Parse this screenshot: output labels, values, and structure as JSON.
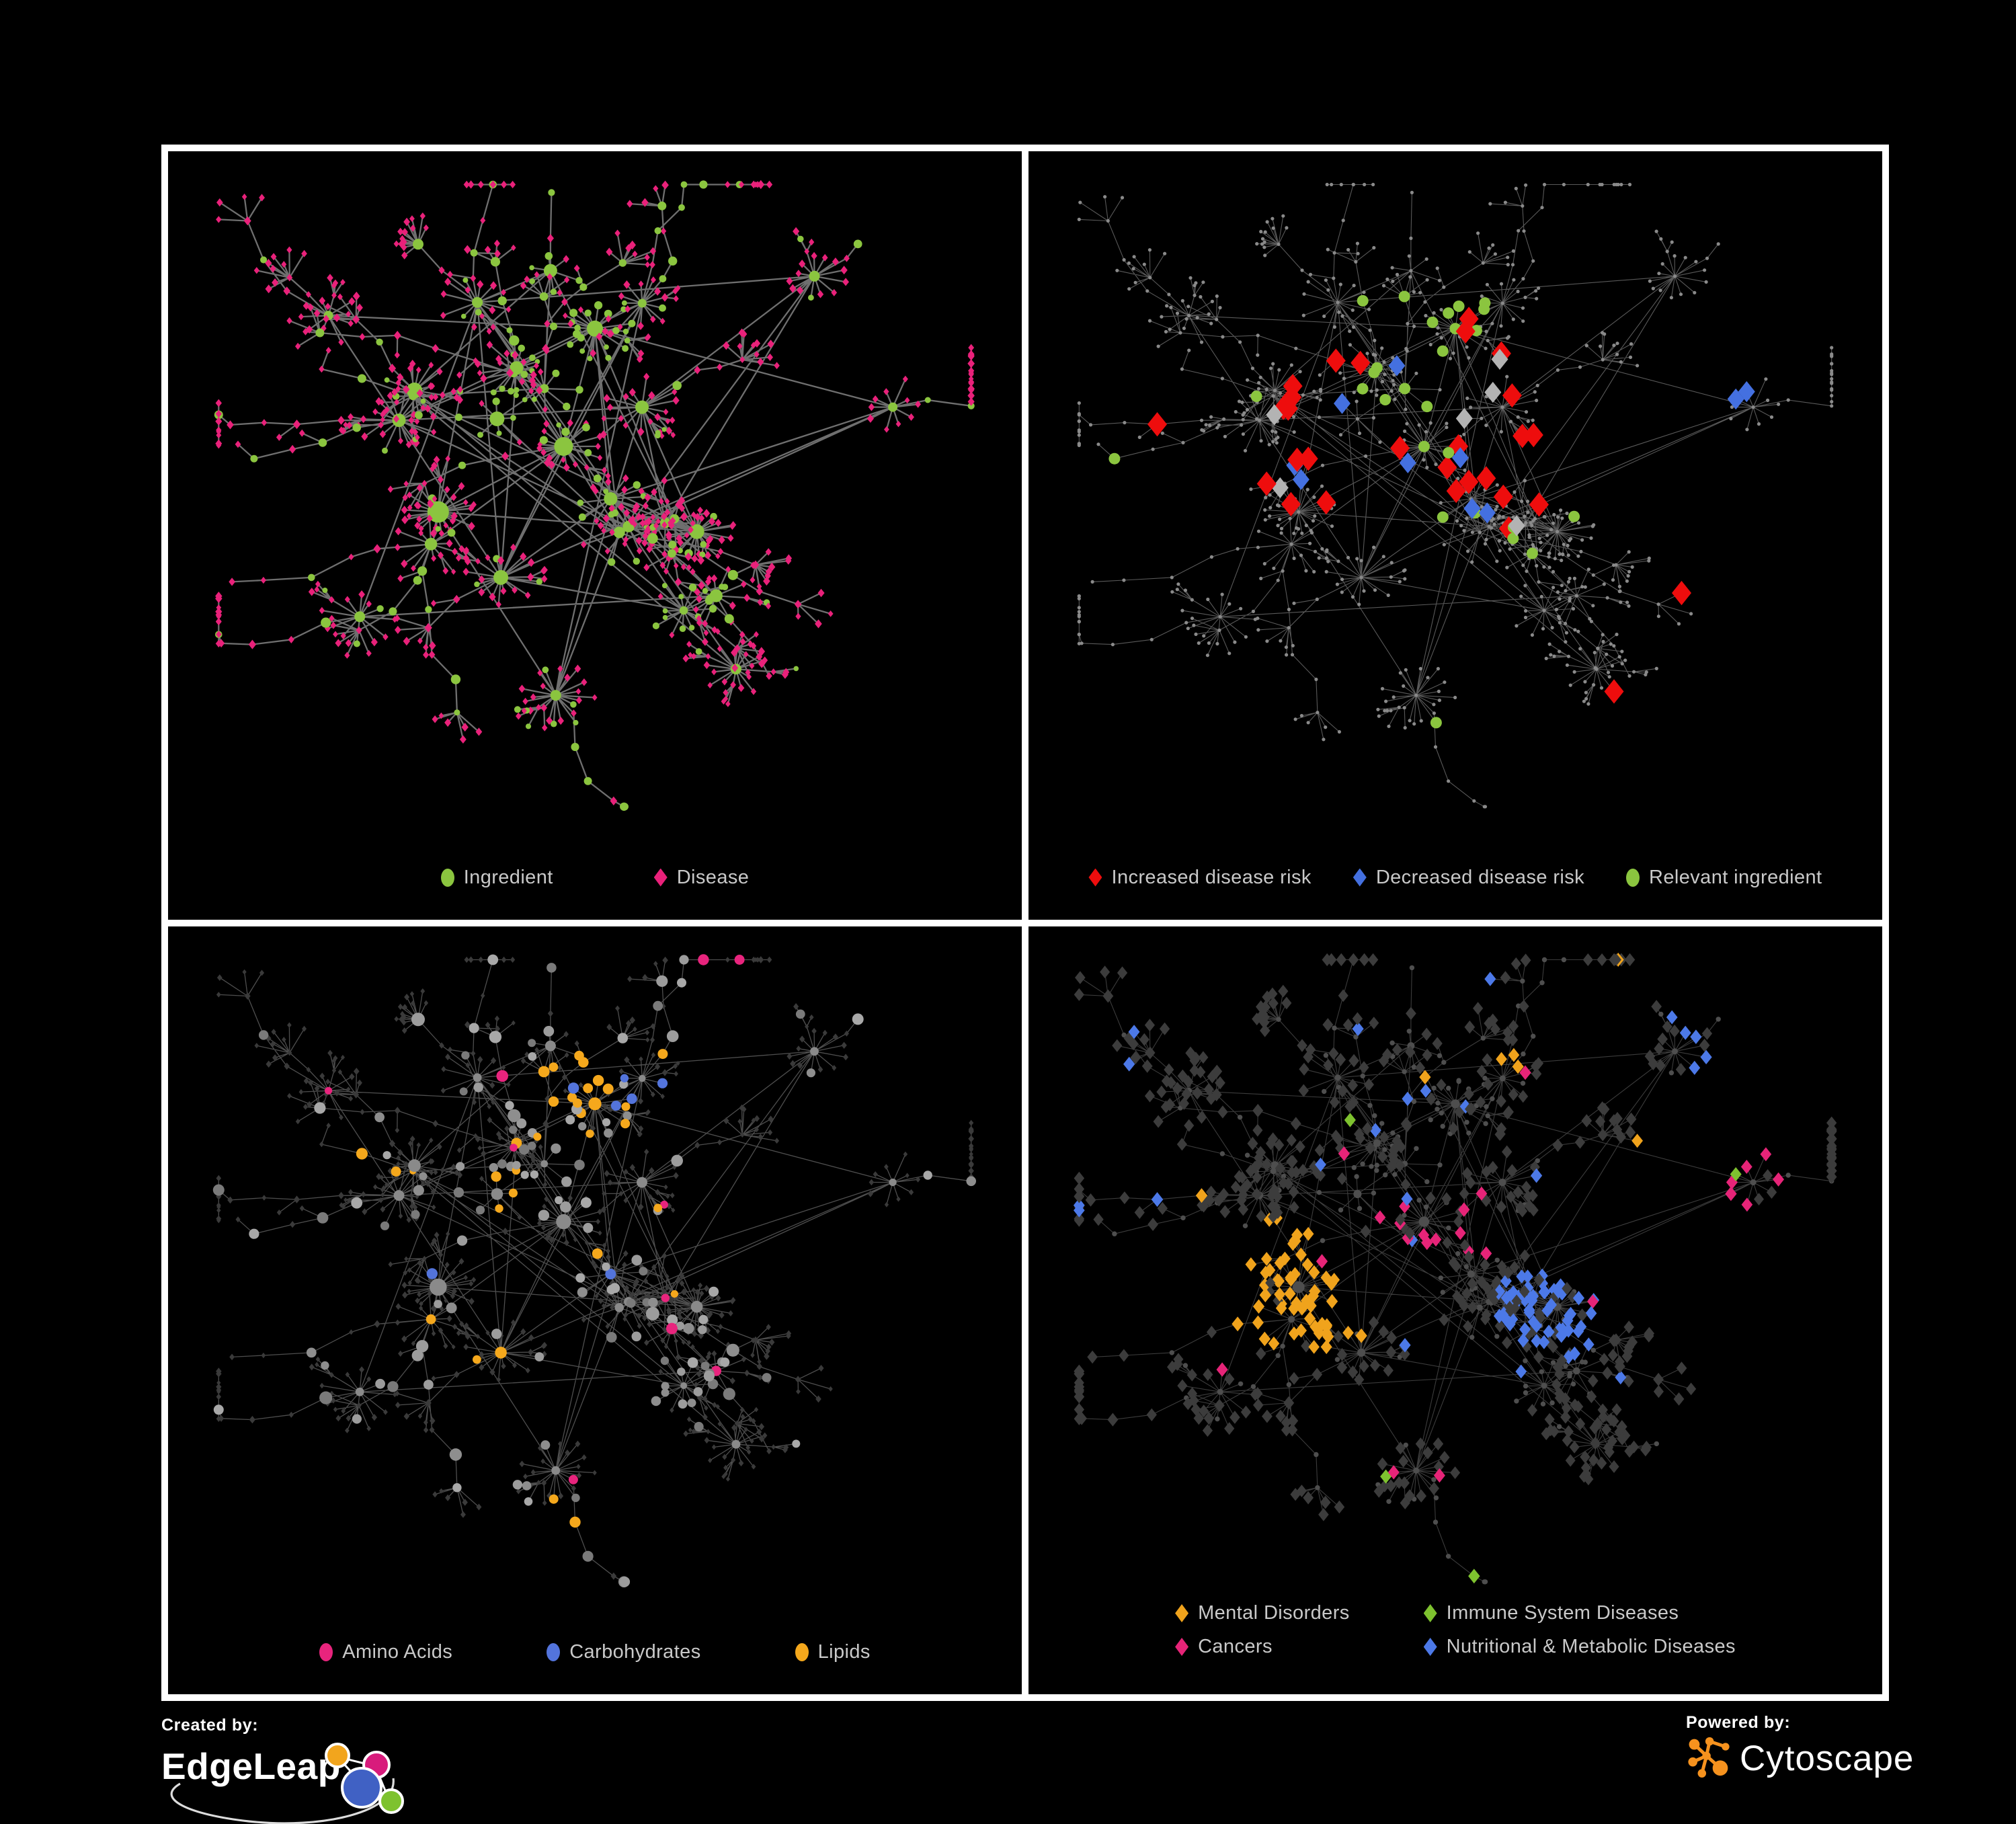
{
  "branding": {
    "created_by_label": "Created by:",
    "created_by_name": "EdgeLeap",
    "powered_by_label": "Powered by:",
    "powered_by_name": "Cytoscape"
  },
  "logo_colors": {
    "edgeleap_orange": "#F2A51D",
    "edgeleap_pink": "#D81B7C",
    "edgeleap_blue": "#4061C4",
    "edgeleap_green": "#7EC22F",
    "cytoscape_orange": "#F6921E"
  },
  "panels": [
    {
      "id": "p1",
      "name": "ingredient-disease-network",
      "legend_layout": "row",
      "legend": [
        {
          "label": "Ingredient",
          "shape": "circle",
          "color": "#8BC53F"
        },
        {
          "label": "Disease",
          "shape": "diamond",
          "color": "#E9217A"
        }
      ]
    },
    {
      "id": "p2",
      "name": "disease-risk-network",
      "legend_layout": "row",
      "legend": [
        {
          "label": "Increased disease risk",
          "shape": "diamond",
          "color": "#EE0D0D"
        },
        {
          "label": "Decreased disease risk",
          "shape": "diamond",
          "color": "#4470E0"
        },
        {
          "label": "Relevant ingredient",
          "shape": "circle",
          "color": "#8BC53F"
        }
      ]
    },
    {
      "id": "p3",
      "name": "nutrient-class-network",
      "legend_layout": "row",
      "legend": [
        {
          "label": "Amino Acids",
          "shape": "circle",
          "color": "#E8247D"
        },
        {
          "label": "Carbohydrates",
          "shape": "circle",
          "color": "#5374DC"
        },
        {
          "label": "Lipids",
          "shape": "circle",
          "color": "#F5A81C"
        }
      ]
    },
    {
      "id": "p4",
      "name": "disease-class-network",
      "legend_layout": "grid",
      "legend": [
        {
          "label": "Mental Disorders",
          "shape": "diamond",
          "color": "#F0A31C"
        },
        {
          "label": "Immune System Diseases",
          "shape": "diamond",
          "color": "#7EC22F"
        },
        {
          "label": "Cancers",
          "shape": "diamond",
          "color": "#E62478"
        },
        {
          "label": "Nutritional & Metabolic Diseases",
          "shape": "diamond",
          "color": "#4C79E8"
        }
      ]
    }
  ],
  "network_style": {
    "p1": {
      "ingredient": "#8BC53F",
      "disease": "#E9217A",
      "edge": {
        "color": "#7B7B7B",
        "width": 2.3,
        "opacity": 0.9
      }
    },
    "p2": {
      "base_node": "#8A8A8A",
      "increased": "#EE0D0D",
      "decreased": "#4470E0",
      "neutral": "#B3B3B3",
      "relevant": "#8BC53F",
      "edge": {
        "color": "#6F6F6F",
        "width": 1.1,
        "opacity": 0.8
      }
    },
    "p3": {
      "base_circle": "#9C9C9C",
      "hub_circle": "#8A8A8A",
      "amino": "#E8247D",
      "carb": "#5374DC",
      "lipid": "#F5A81C",
      "disease_diamond": "#3A3A3A",
      "edge": {
        "color": "#9B9B9B",
        "width": 1.3,
        "opacity": 0.5
      }
    },
    "p4": {
      "base_diamond": "#3C3C3C",
      "ingredient_dot": "#4E4E4E",
      "mental": "#F0A31C",
      "immune": "#7EC22F",
      "cancer": "#E62478",
      "nutri": "#4C79E8",
      "edge": {
        "color": "#8F8F8F",
        "width": 1.1,
        "opacity": 0.42
      }
    }
  }
}
